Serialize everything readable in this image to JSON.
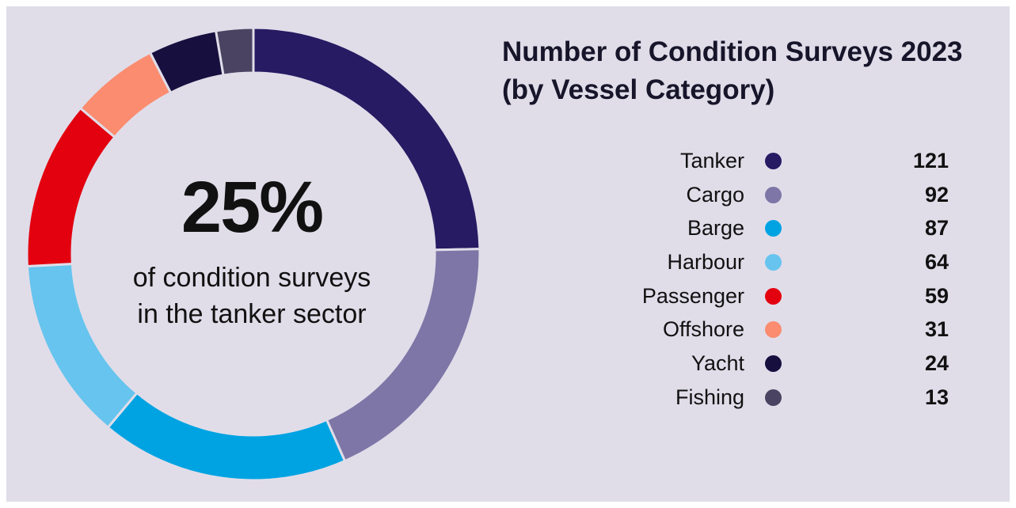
{
  "chart_data": {
    "type": "pie",
    "donut": true,
    "title": "Number of Condition Surveys 2023",
    "subtitle": "(by Vessel Category)",
    "center": {
      "value": "25%",
      "line1": "of condition surveys",
      "line2": "in the tanker sector"
    },
    "legend_placement": "right",
    "categories": [
      "Tanker",
      "Cargo",
      "Barge",
      "Harbour",
      "Passenger",
      "Offshore",
      "Yacht",
      "Fishing"
    ],
    "values": [
      121,
      92,
      87,
      64,
      59,
      31,
      24,
      13
    ],
    "colors": [
      "#271b63",
      "#7d76a6",
      "#00a3e2",
      "#66c4ee",
      "#e3000f",
      "#fb8c70",
      "#17103f",
      "#4a4462"
    ]
  }
}
